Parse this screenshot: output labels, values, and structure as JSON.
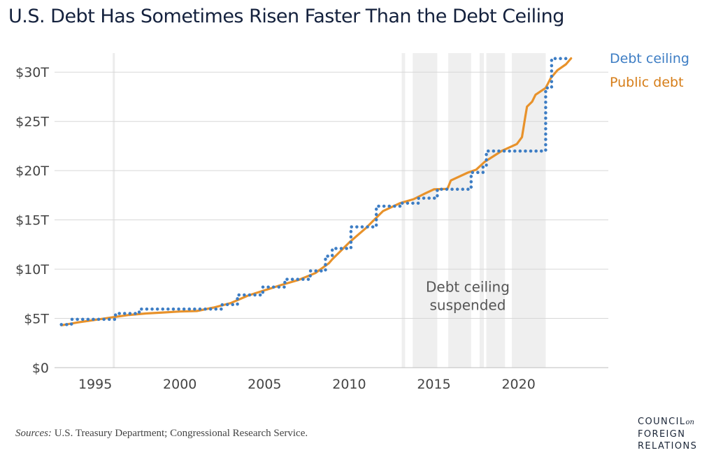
{
  "title": "U.S. Debt Has Sometimes Risen Faster Than the Debt Ceiling",
  "source": {
    "prefix": "Sources:",
    "text": " U.S. Treasury Department; Congressional Research Service."
  },
  "logo": {
    "line1": "COUNCIL",
    "line1_small": "on",
    "line2": "FOREIGN",
    "line3": "RELATIONS"
  },
  "colors": {
    "ceiling": "#3d7dc4",
    "debt": "#e8922b",
    "shade": "#efefef",
    "grid": "#d7d7d7",
    "text": "#444444"
  },
  "chart_data": {
    "type": "line",
    "title": "U.S. Debt Has Sometimes Risen Faster Than the Debt Ceiling",
    "xlim": [
      1992.6,
      2025.3
    ],
    "ylim": [
      0,
      32.5
    ],
    "x_ticks": [
      1995,
      2000,
      2005,
      2010,
      2015,
      2020
    ],
    "x_tick_labels": [
      "1995",
      "2000",
      "2005",
      "2010",
      "2015",
      "2020"
    ],
    "y_ticks": [
      0,
      5,
      10,
      15,
      20,
      25,
      30
    ],
    "y_tick_labels": [
      "$0",
      "$5T",
      "$10T",
      "$15T",
      "$20T",
      "$25T",
      "$30T"
    ],
    "grid": "horizontal",
    "annotation": {
      "line1": "Debt ceiling",
      "line2": "suspended",
      "x": 2017.0,
      "y": 7.7
    },
    "suspended_periods": [
      [
        2013.1,
        2013.3
      ],
      [
        2013.75,
        2015.2
      ],
      [
        2015.85,
        2017.2
      ],
      [
        2017.7,
        2017.95
      ],
      [
        2018.1,
        2019.2
      ],
      [
        2019.6,
        2021.6
      ]
    ],
    "series": [
      {
        "name": "Debt ceiling",
        "style": "dotted",
        "points": [
          [
            1993.0,
            4.37
          ],
          [
            1993.6,
            4.37
          ],
          [
            1993.6,
            4.9
          ],
          [
            1996.2,
            4.9
          ],
          [
            1996.2,
            5.5
          ],
          [
            1997.6,
            5.5
          ],
          [
            1997.6,
            5.95
          ],
          [
            2002.5,
            5.95
          ],
          [
            2002.5,
            6.4
          ],
          [
            2003.4,
            6.4
          ],
          [
            2003.4,
            7.38
          ],
          [
            2004.9,
            7.38
          ],
          [
            2004.9,
            8.18
          ],
          [
            2006.2,
            8.18
          ],
          [
            2006.2,
            8.97
          ],
          [
            2007.7,
            8.97
          ],
          [
            2007.7,
            9.82
          ],
          [
            2008.6,
            9.82
          ],
          [
            2008.6,
            11.32
          ],
          [
            2009.0,
            11.32
          ],
          [
            2009.0,
            12.1
          ],
          [
            2010.1,
            12.1
          ],
          [
            2010.1,
            14.29
          ],
          [
            2011.6,
            14.29
          ],
          [
            2011.6,
            16.39
          ],
          [
            2013.1,
            16.39
          ],
          [
            2013.1,
            16.7
          ],
          [
            2014.1,
            16.7
          ],
          [
            2014.1,
            17.21
          ],
          [
            2015.2,
            17.21
          ],
          [
            2015.2,
            18.11
          ],
          [
            2017.2,
            18.11
          ],
          [
            2017.2,
            19.81
          ],
          [
            2017.9,
            19.81
          ],
          [
            2017.9,
            20.45
          ],
          [
            2018.1,
            20.45
          ],
          [
            2018.1,
            21.99
          ],
          [
            2021.6,
            21.99
          ],
          [
            2021.6,
            28.4
          ],
          [
            2021.95,
            28.4
          ],
          [
            2021.95,
            31.38
          ],
          [
            2023.0,
            31.38
          ]
        ]
      },
      {
        "name": "Public debt",
        "style": "solid",
        "points": [
          [
            1993.0,
            4.3
          ],
          [
            1994.0,
            4.6
          ],
          [
            1995.0,
            4.85
          ],
          [
            1996.0,
            5.1
          ],
          [
            1997.0,
            5.35
          ],
          [
            1998.0,
            5.5
          ],
          [
            1999.0,
            5.6
          ],
          [
            2000.0,
            5.7
          ],
          [
            2001.0,
            5.75
          ],
          [
            2002.0,
            6.1
          ],
          [
            2003.0,
            6.55
          ],
          [
            2004.0,
            7.3
          ],
          [
            2005.0,
            7.85
          ],
          [
            2006.0,
            8.4
          ],
          [
            2007.0,
            8.9
          ],
          [
            2008.0,
            9.6
          ],
          [
            2008.8,
            10.6
          ],
          [
            2009.0,
            11.0
          ],
          [
            2010.0,
            12.7
          ],
          [
            2011.0,
            14.2
          ],
          [
            2012.0,
            15.9
          ],
          [
            2013.0,
            16.7
          ],
          [
            2013.8,
            17.1
          ],
          [
            2014.5,
            17.7
          ],
          [
            2015.0,
            18.1
          ],
          [
            2015.8,
            18.15
          ],
          [
            2016.0,
            19.0
          ],
          [
            2017.0,
            19.8
          ],
          [
            2017.5,
            20.1
          ],
          [
            2018.0,
            20.9
          ],
          [
            2019.0,
            22.0
          ],
          [
            2019.9,
            22.7
          ],
          [
            2020.2,
            23.4
          ],
          [
            2020.4,
            25.5
          ],
          [
            2020.5,
            26.5
          ],
          [
            2020.8,
            27.0
          ],
          [
            2021.0,
            27.7
          ],
          [
            2021.6,
            28.4
          ],
          [
            2021.9,
            29.4
          ],
          [
            2022.3,
            30.2
          ],
          [
            2022.8,
            30.8
          ],
          [
            2023.1,
            31.4
          ]
        ]
      }
    ]
  }
}
